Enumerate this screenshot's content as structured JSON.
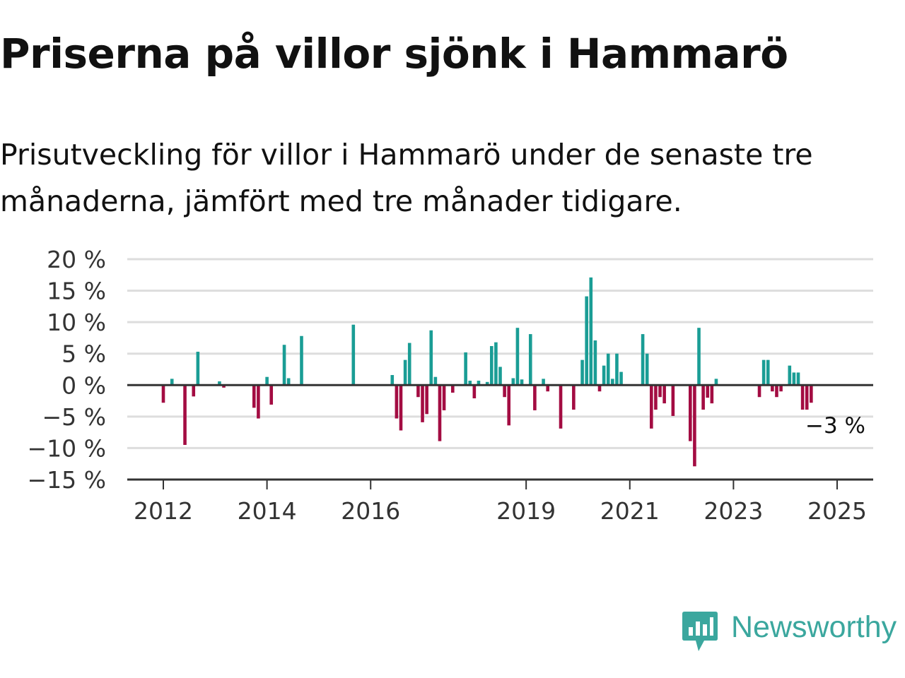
{
  "header": {
    "title": "Priserna på villor sjönk i Hammarö",
    "subtitle": "Prisutveckling för villor i Hammarö under de senaste tre månaderna, jämfört med tre månader tidigare."
  },
  "brand": {
    "name": "Newsworthy",
    "color": "#3ba79e"
  },
  "colors": {
    "positive": "#1a9d95",
    "negative": "#a30c42",
    "grid": "#dddddd",
    "axis": "#333333"
  },
  "chart_data": {
    "type": "bar",
    "title": "Priserna på villor sjönk i Hammarö",
    "xlabel": "",
    "ylabel": "",
    "ylim": [
      -15,
      20
    ],
    "y_ticks": [
      20,
      15,
      10,
      5,
      0,
      -5,
      -10,
      -15
    ],
    "y_tick_labels": [
      "20 %",
      "15 %",
      "10 %",
      "5 %",
      "0 %",
      "−5 %",
      "−10 %",
      "−15 %"
    ],
    "x_ticks": [
      "2012",
      "2014",
      "2016",
      "2019",
      "2021",
      "2023",
      "2025"
    ],
    "x_tick_dates": [
      "2012-01",
      "2014-01",
      "2016-01",
      "2019-01",
      "2021-01",
      "2023-01",
      "2025-01"
    ],
    "grid": true,
    "end_label": "−3 %",
    "series": [
      {
        "x": [
          "2012-01",
          "2012-03",
          "2012-06",
          "2012-08",
          "2012-09",
          "2013-02",
          "2013-03",
          "2013-10",
          "2013-11",
          "2014-01",
          "2014-02",
          "2014-05",
          "2014-06",
          "2014-09",
          "2015-09",
          "2016-06",
          "2016-07",
          "2016-08",
          "2016-09",
          "2016-10",
          "2016-12",
          "2017-01",
          "2017-02",
          "2017-03",
          "2017-04",
          "2017-05",
          "2017-06",
          "2017-08",
          "2017-11",
          "2017-12",
          "2018-01",
          "2018-02",
          "2018-04",
          "2018-05",
          "2018-06",
          "2018-07",
          "2018-08",
          "2018-09",
          "2018-10",
          "2018-11",
          "2018-12",
          "2019-02",
          "2019-03",
          "2019-05",
          "2019-06",
          "2019-09",
          "2019-12",
          "2020-02",
          "2020-03",
          "2020-04",
          "2020-05",
          "2020-06",
          "2020-07",
          "2020-08",
          "2020-09",
          "2020-10",
          "2020-11",
          "2021-04",
          "2021-05",
          "2021-06",
          "2021-07",
          "2021-08",
          "2021-09",
          "2021-11",
          "2022-03",
          "2022-04",
          "2022-05",
          "2022-06",
          "2022-07",
          "2022-08",
          "2022-09",
          "2023-07",
          "2023-08",
          "2023-09",
          "2023-10",
          "2023-11",
          "2023-12",
          "2024-02",
          "2024-03",
          "2024-04",
          "2024-05",
          "2024-06",
          "2024-07",
          "2024-08",
          "2024-09",
          "2024-10",
          "2024-11",
          "2024-12"
        ],
        "values": [
          -2.8,
          1.0,
          -9.5,
          -1.8,
          5.3,
          0.6,
          -0.4,
          -3.6,
          -5.3,
          1.3,
          -3.1,
          6.4,
          1.1,
          7.8,
          9.6,
          1.6,
          -5.3,
          -7.2,
          4.0,
          6.7,
          -1.9,
          -5.9,
          -4.6,
          8.7,
          1.3,
          -8.9,
          -4.0,
          -1.2,
          5.2,
          0.7,
          -2.1,
          0.7,
          0.5,
          6.2,
          6.8,
          2.9,
          -1.9,
          -6.4,
          1.1,
          9.1,
          0.9,
          8.1,
          -4.0,
          1.0,
          -1.0,
          -6.9,
          -3.9,
          4.0,
          14.1,
          17.1,
          7.1,
          -1.0,
          3.1,
          5.0,
          1.0,
          5.0,
          2.1,
          8.1,
          5.0,
          -6.9,
          -3.9,
          -1.9,
          -2.9,
          -4.9,
          -8.9,
          -12.9,
          9.1,
          -3.9,
          -2.0,
          -2.9,
          1.0,
          -1.9,
          4.0,
          4.0,
          -1.0,
          -1.9,
          -1.0,
          3.1,
          2.0,
          2.0,
          -3.9,
          -3.9,
          -2.8,
          0,
          0,
          0,
          0,
          0
        ]
      }
    ]
  }
}
